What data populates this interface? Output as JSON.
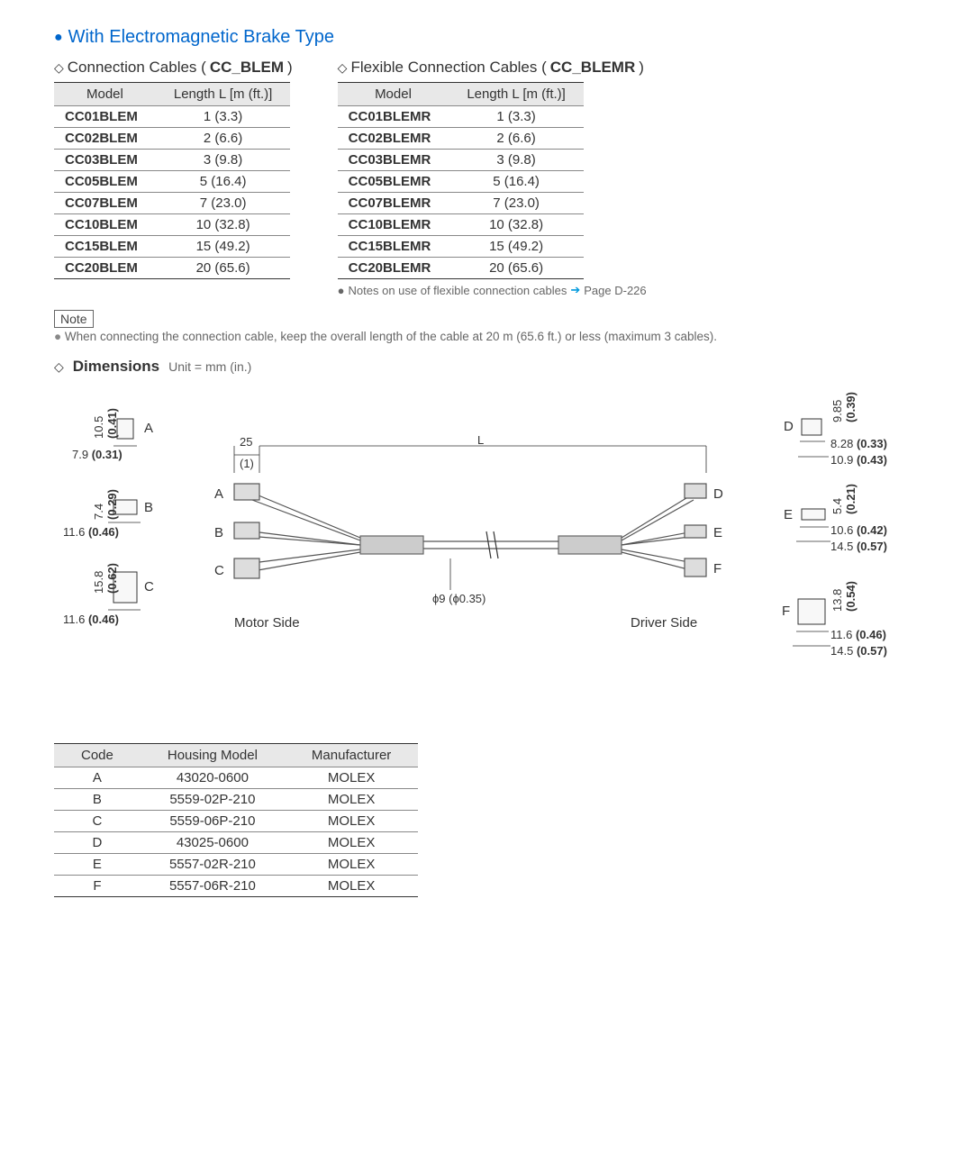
{
  "section_title": "With Electromagnetic Brake Type",
  "table1": {
    "title_prefix": "Connection Cables (",
    "title_bold": "CC_BLEM",
    "title_suffix": ")",
    "columns": [
      "Model",
      "Length L [m (ft.)]"
    ],
    "rows": [
      [
        "CC01BLEM",
        "1 (3.3)"
      ],
      [
        "CC02BLEM",
        "2 (6.6)"
      ],
      [
        "CC03BLEM",
        "3 (9.8)"
      ],
      [
        "CC05BLEM",
        "5 (16.4)"
      ],
      [
        "CC07BLEM",
        "7 (23.0)"
      ],
      [
        "CC10BLEM",
        "10 (32.8)"
      ],
      [
        "CC15BLEM",
        "15 (49.2)"
      ],
      [
        "CC20BLEM",
        "20 (65.6)"
      ]
    ]
  },
  "table2": {
    "title_prefix": "Flexible Connection Cables (",
    "title_bold": "CC_BLEMR",
    "title_suffix": ")",
    "columns": [
      "Model",
      "Length L [m (ft.)]"
    ],
    "rows": [
      [
        "CC01BLEMR",
        "1 (3.3)"
      ],
      [
        "CC02BLEMR",
        "2 (6.6)"
      ],
      [
        "CC03BLEMR",
        "3 (9.8)"
      ],
      [
        "CC05BLEMR",
        "5 (16.4)"
      ],
      [
        "CC07BLEMR",
        "7 (23.0)"
      ],
      [
        "CC10BLEMR",
        "10 (32.8)"
      ],
      [
        "CC15BLEMR",
        "15 (49.2)"
      ],
      [
        "CC20BLEMR",
        "20 (65.6)"
      ]
    ]
  },
  "flex_note_prefix": "Notes on use of flexible connection cables",
  "flex_note_page": "Page D-226",
  "note_label": "Note",
  "note_text": "When connecting the connection cable, keep the overall length of the cable at 20 m (65.6 ft.) or less (maximum 3 cables).",
  "dimensions_title": "Dimensions",
  "dimensions_unit": "Unit = mm (in.)",
  "diagram": {
    "motor_side": "Motor Side",
    "driver_side": "Driver Side",
    "cable_diameter": "ϕ9 (ϕ0.35)",
    "dim_25": "25",
    "dim_25_in": "(1)",
    "dim_L": "L",
    "connA": {
      "letter": "A",
      "h": "10.5",
      "h_in": "(0.41)",
      "w": "7.9",
      "w_in": "(0.31)"
    },
    "connB": {
      "letter": "B",
      "h": "7.4",
      "h_in": "(0.29)",
      "w": "11.6",
      "w_in": "(0.46)"
    },
    "connC": {
      "letter": "C",
      "h": "15.8",
      "h_in": "(0.62)",
      "w": "11.6",
      "w_in": "(0.46)"
    },
    "connD": {
      "letter": "D",
      "h": "9.85",
      "h_in": "(0.39)",
      "w1": "8.28",
      "w1_in": "(0.33)",
      "w2": "10.9",
      "w2_in": "(0.43)"
    },
    "connE": {
      "letter": "E",
      "h": "5.4",
      "h_in": "(0.21)",
      "w1": "10.6",
      "w1_in": "(0.42)",
      "w2": "14.5",
      "w2_in": "(0.57)"
    },
    "connF": {
      "letter": "F",
      "h": "13.8",
      "h_in": "(0.54)",
      "w1": "11.6",
      "w1_in": "(0.46)",
      "w2": "14.5",
      "w2_in": "(0.57)"
    }
  },
  "housing_table": {
    "columns": [
      "Code",
      "Housing Model",
      "Manufacturer"
    ],
    "rows": [
      [
        "A",
        "43020-0600",
        "MOLEX"
      ],
      [
        "B",
        "5559-02P-210",
        "MOLEX"
      ],
      [
        "C",
        "5559-06P-210",
        "MOLEX"
      ],
      [
        "D",
        "43025-0600",
        "MOLEX"
      ],
      [
        "E",
        "5557-02R-210",
        "MOLEX"
      ],
      [
        "F",
        "5557-06R-210",
        "MOLEX"
      ]
    ]
  }
}
